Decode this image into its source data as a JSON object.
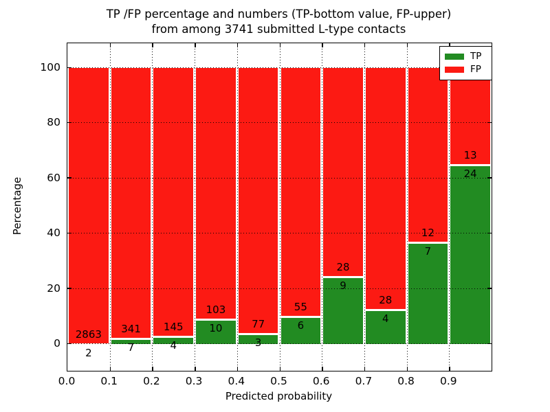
{
  "figure": {
    "title_line1": "TP /FP percentage and numbers (TP-bottom value, FP-upper)",
    "title_line2": "from among 3741 submitted L-type contacts"
  },
  "chart_data": {
    "type": "bar",
    "subtype": "stacked-percentage-histogram",
    "title": "TP /FP percentage and numbers (TP-bottom value, FP-upper)\nfrom among 3741 submitted L-type contacts",
    "total_submitted": 3741,
    "xlabel": "Predicted probability",
    "ylabel": "Percentage",
    "x_tick_labels": [
      "0.0",
      "0.1",
      "0.2",
      "0.3",
      "0.4",
      "0.5",
      "0.6",
      "0.7",
      "0.8",
      "0.9"
    ],
    "y_ticks": [
      0,
      20,
      40,
      60,
      80,
      100
    ],
    "xlim": [
      0.0,
      1.0
    ],
    "ylim": [
      -10,
      109
    ],
    "grid": "dotted, drawn over bars",
    "legend_position": "upper right",
    "categories": [
      "0.0-0.1",
      "0.1-0.2",
      "0.2-0.3",
      "0.3-0.4",
      "0.4-0.5",
      "0.5-0.6",
      "0.6-0.7",
      "0.7-0.8",
      "0.8-0.9",
      "0.9-1.0"
    ],
    "series": [
      {
        "name": "TP",
        "color": "#228b22",
        "values": [
          2,
          7,
          4,
          10,
          3,
          6,
          9,
          4,
          7,
          24
        ]
      },
      {
        "name": "FP",
        "color": "#fc1a13",
        "values": [
          2863,
          341,
          145,
          103,
          77,
          55,
          28,
          28,
          12,
          13
        ]
      }
    ],
    "bins": [
      {
        "range": "0.0-0.1",
        "tp": 2,
        "fp": 2863,
        "tp_percent": 0.07
      },
      {
        "range": "0.1-0.2",
        "tp": 7,
        "fp": 341,
        "tp_percent": 2.01
      },
      {
        "range": "0.2-0.3",
        "tp": 4,
        "fp": 145,
        "tp_percent": 2.68
      },
      {
        "range": "0.3-0.4",
        "tp": 10,
        "fp": 103,
        "tp_percent": 8.85
      },
      {
        "range": "0.4-0.5",
        "tp": 3,
        "fp": 77,
        "tp_percent": 3.75
      },
      {
        "range": "0.5-0.6",
        "tp": 6,
        "fp": 55,
        "tp_percent": 9.84
      },
      {
        "range": "0.6-0.7",
        "tp": 9,
        "fp": 28,
        "tp_percent": 24.32
      },
      {
        "range": "0.7-0.8",
        "tp": 4,
        "fp": 28,
        "tp_percent": 12.5
      },
      {
        "range": "0.8-0.9",
        "tp": 7,
        "fp": 12,
        "tp_percent": 36.84
      },
      {
        "range": "0.9-1.0",
        "tp": 24,
        "fp": 13,
        "tp_percent": 64.86
      }
    ],
    "legend": [
      {
        "label": "TP",
        "color": "#228b22"
      },
      {
        "label": "FP",
        "color": "#fc1a13"
      }
    ]
  }
}
